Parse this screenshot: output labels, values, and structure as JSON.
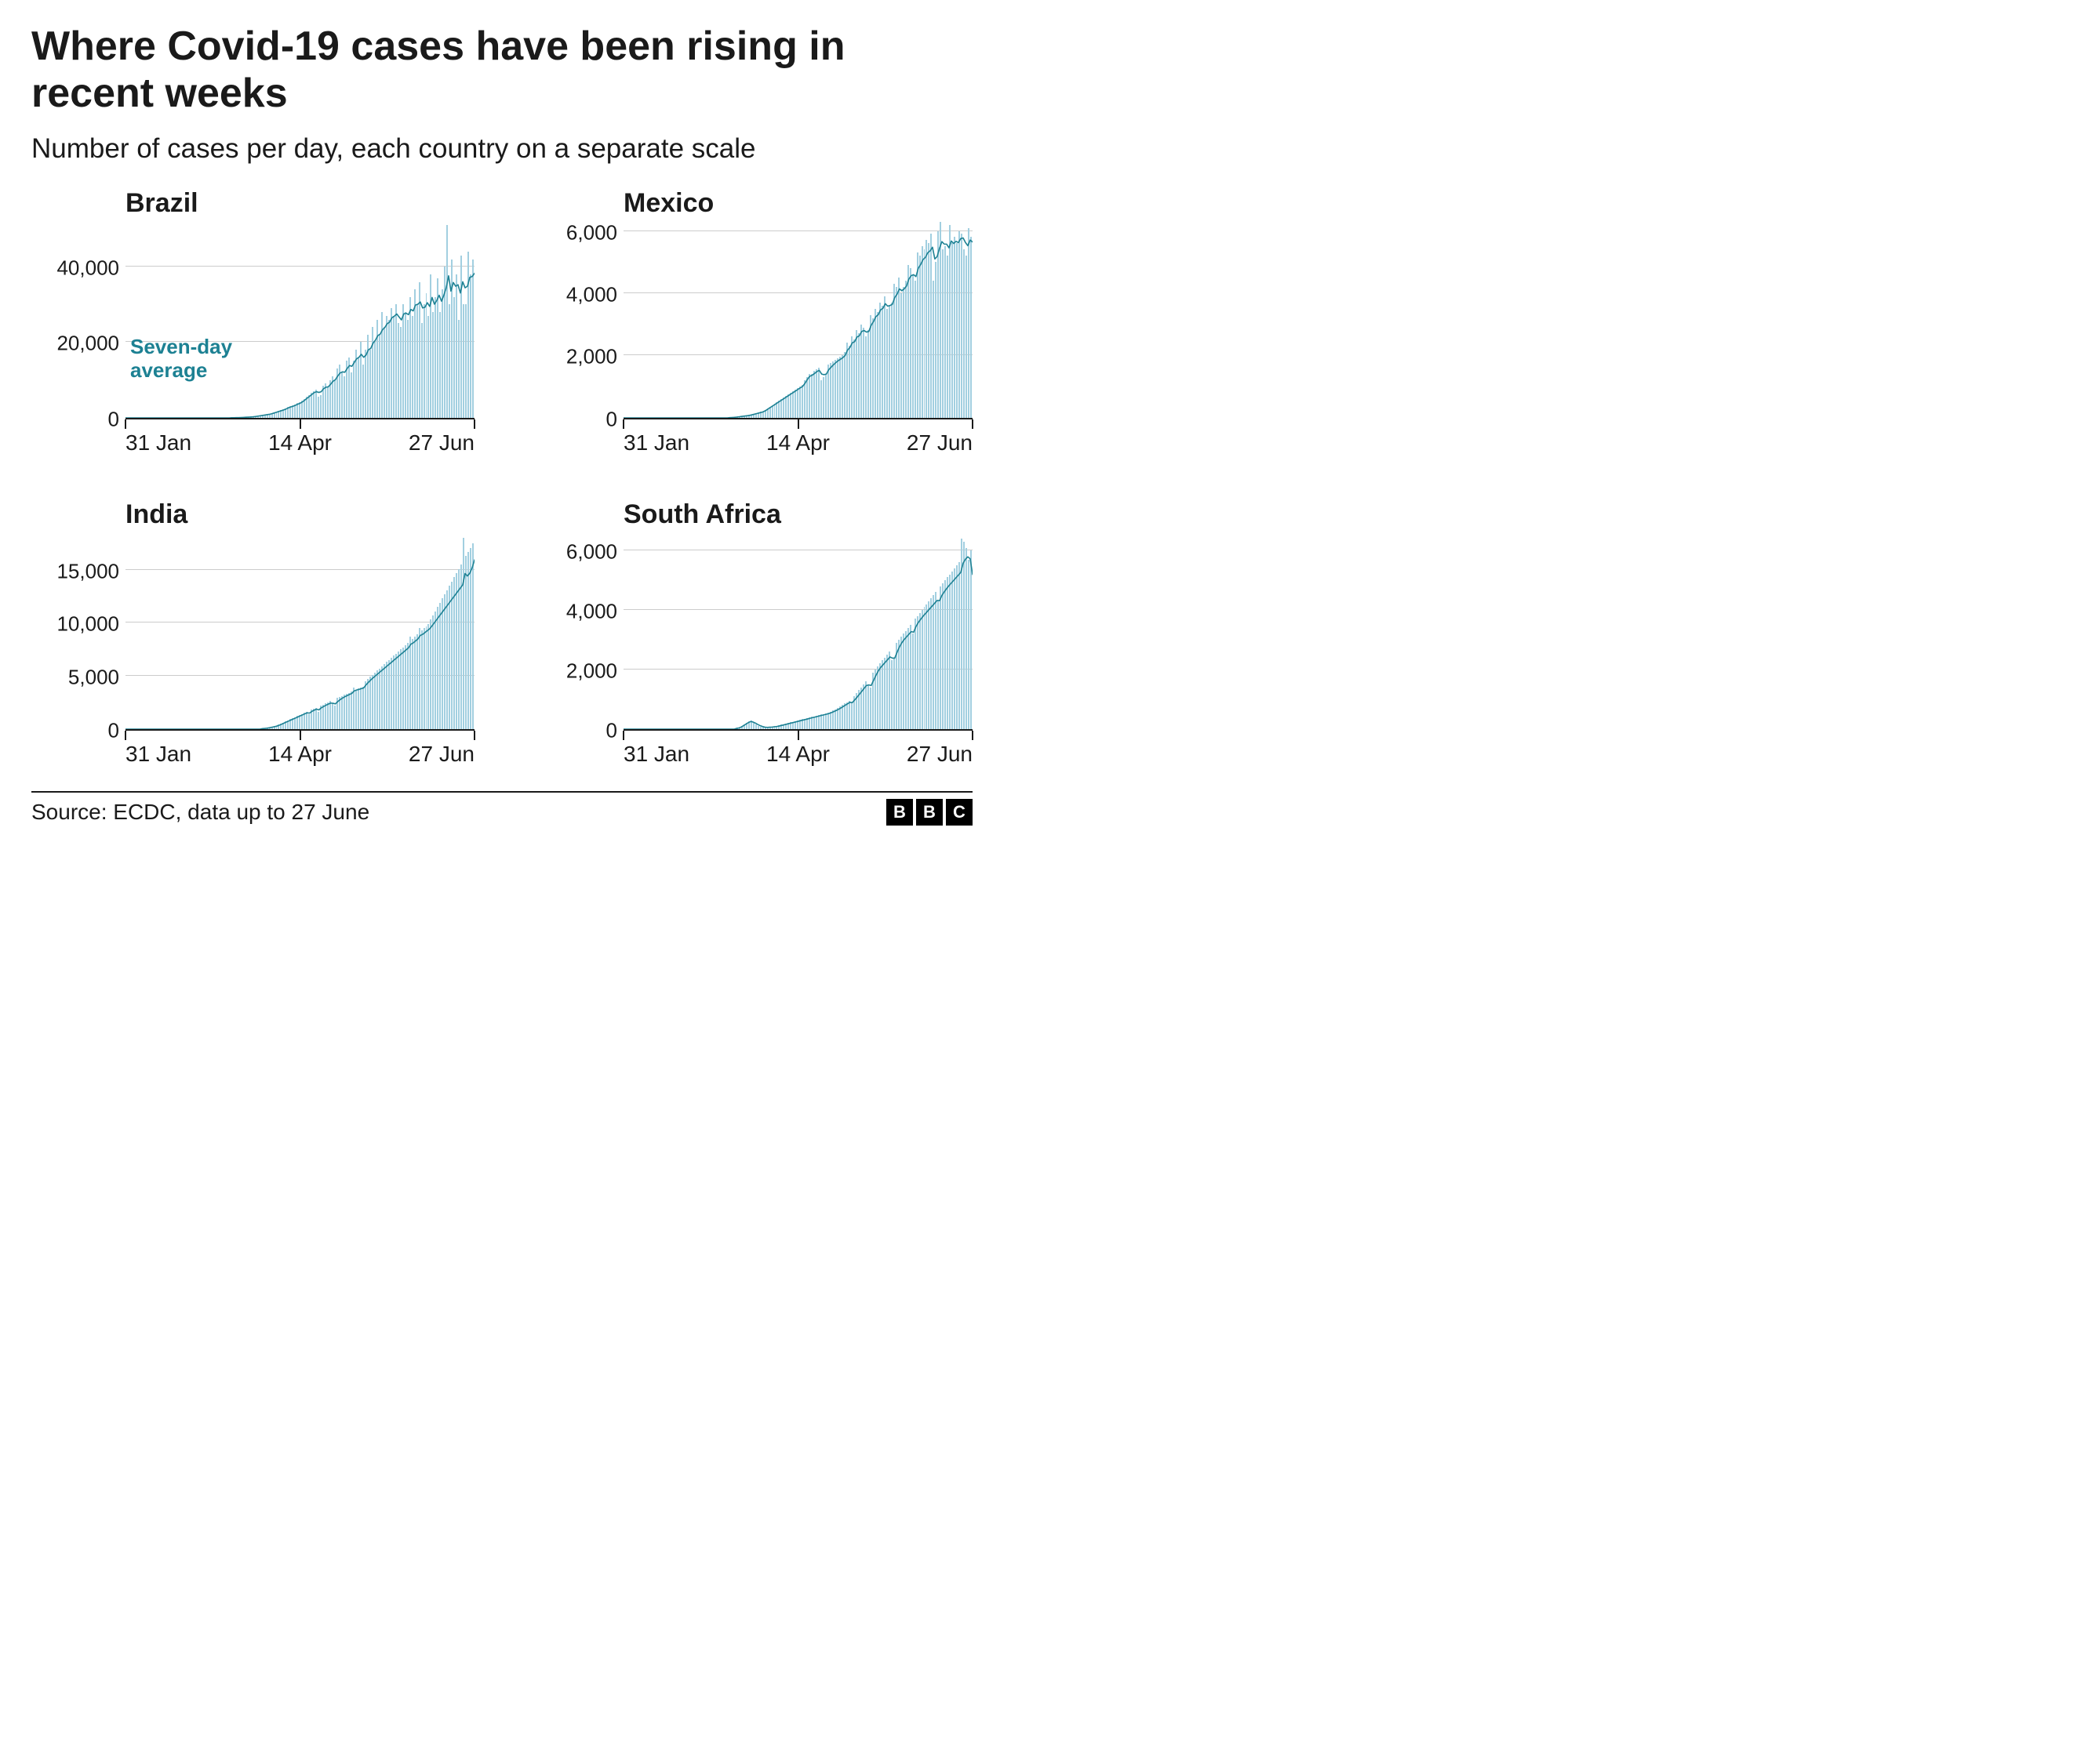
{
  "title": "Where Covid-19 cases have been rising in recent weeks",
  "subtitle": "Number of cases per day, each country on a separate scale",
  "source": "Source: ECDC, data up to 27 June",
  "logo_letters": [
    "B",
    "B",
    "C"
  ],
  "annotation_label": "Seven-day average",
  "style": {
    "line_color": "#1d8193",
    "bar_color": "#a2cfe0",
    "grid_color": "#cccccc",
    "bg_color": "#ffffff",
    "axis_color": "#1a1a1a",
    "line_width": 4,
    "title_fontsize": 52,
    "subtitle_fontsize": 35,
    "panel_title_fontsize": 34,
    "tick_fontsize": 26,
    "xlabel_fontsize": 28
  },
  "x_axis": {
    "labels": [
      "31 Jan",
      "14 Apr",
      "27 Jun"
    ],
    "positions_pct": [
      0,
      50,
      100
    ],
    "n_points": 149
  },
  "panels": [
    {
      "name": "Brazil",
      "ymax": 52000,
      "yticks": [
        0,
        20000,
        40000
      ],
      "ytick_labels": [
        "0",
        "20,000",
        "40,000"
      ],
      "annotation": true,
      "bars": [
        0,
        0,
        0,
        0,
        0,
        0,
        0,
        0,
        0,
        0,
        0,
        0,
        0,
        0,
        0,
        0,
        0,
        0,
        0,
        0,
        0,
        0,
        0,
        0,
        0,
        0,
        0,
        0,
        0,
        0,
        0,
        0,
        0,
        0,
        0,
        0,
        0,
        0,
        0,
        0,
        0,
        0,
        0,
        0,
        0,
        50,
        50,
        80,
        100,
        120,
        150,
        180,
        200,
        250,
        300,
        400,
        500,
        600,
        700,
        800,
        900,
        1000,
        1200,
        1400,
        1600,
        1800,
        2000,
        2200,
        2500,
        2800,
        3000,
        3200,
        3500,
        3800,
        4000,
        4500,
        5000,
        5500,
        6000,
        6500,
        7000,
        7500,
        5500,
        6000,
        8500,
        9000,
        8000,
        10000,
        11000,
        10000,
        13000,
        14000,
        12000,
        11000,
        15000,
        16000,
        12000,
        15000,
        18000,
        16000,
        20000,
        14000,
        18000,
        22000,
        18000,
        24000,
        20000,
        26000,
        22000,
        28000,
        24000,
        27000,
        26000,
        29000,
        27000,
        30000,
        25000,
        24000,
        30000,
        28000,
        26000,
        32000,
        27000,
        34000,
        30000,
        36000,
        25000,
        30000,
        33000,
        27000,
        38000,
        28000,
        32000,
        37000,
        28000,
        34000,
        40000,
        51000,
        30000,
        42000,
        32000,
        38000,
        26000,
        43000,
        30000,
        30000,
        44000,
        38000,
        42000
      ],
      "avg": [
        0,
        0,
        0,
        0,
        0,
        0,
        0,
        0,
        0,
        0,
        0,
        0,
        0,
        0,
        0,
        0,
        0,
        0,
        0,
        0,
        0,
        0,
        0,
        0,
        0,
        0,
        0,
        0,
        0,
        0,
        0,
        0,
        0,
        0,
        0,
        0,
        0,
        0,
        0,
        0,
        0,
        0,
        0,
        0,
        0,
        30,
        40,
        60,
        80,
        100,
        130,
        160,
        190,
        230,
        280,
        350,
        450,
        550,
        650,
        750,
        850,
        950,
        1100,
        1300,
        1500,
        1700,
        1900,
        2100,
        2350,
        2650,
        2900,
        3100,
        3350,
        3650,
        3900,
        4250,
        4750,
        5250,
        5750,
        6250,
        6750,
        7000,
        6800,
        7000,
        7800,
        8200,
        8300,
        9000,
        9800,
        10200,
        11200,
        12000,
        12300,
        12200,
        13200,
        14000,
        13800,
        14800,
        15800,
        16200,
        17000,
        16200,
        16800,
        18200,
        18600,
        20000,
        20800,
        22000,
        22400,
        23600,
        24200,
        25200,
        25600,
        26800,
        27200,
        27800,
        27000,
        26200,
        27800,
        28000,
        27600,
        29000,
        28600,
        30200,
        30400,
        31000,
        29400,
        29600,
        30800,
        29800,
        32200,
        30400,
        31400,
        32800,
        31200,
        32800,
        34800,
        38000,
        33900,
        36200,
        35200,
        35600,
        33400,
        36400,
        34800,
        35200,
        37600,
        37800,
        38670
      ]
    },
    {
      "name": "Mexico",
      "ymax": 6300,
      "yticks": [
        0,
        2000,
        4000,
        6000
      ],
      "ytick_labels": [
        "0",
        "2,000",
        "4,000",
        "6,000"
      ],
      "annotation": false,
      "bars": [
        0,
        0,
        0,
        0,
        0,
        0,
        0,
        0,
        0,
        0,
        0,
        0,
        0,
        0,
        0,
        0,
        0,
        0,
        0,
        0,
        0,
        0,
        0,
        0,
        0,
        0,
        0,
        0,
        0,
        0,
        0,
        0,
        0,
        0,
        0,
        0,
        0,
        0,
        0,
        0,
        0,
        0,
        0,
        0,
        0,
        10,
        15,
        20,
        30,
        40,
        50,
        60,
        70,
        80,
        100,
        120,
        140,
        160,
        180,
        200,
        250,
        300,
        350,
        400,
        450,
        500,
        550,
        600,
        650,
        700,
        750,
        800,
        850,
        900,
        950,
        1000,
        1050,
        1200,
        1300,
        1400,
        1400,
        1500,
        1550,
        1600,
        1200,
        1300,
        1400,
        1700,
        1750,
        1800,
        1850,
        1900,
        1950,
        2000,
        2100,
        2400,
        2300,
        2600,
        2500,
        2800,
        2700,
        3000,
        2900,
        2600,
        2800,
        3300,
        3200,
        3500,
        3400,
        3700,
        3600,
        3900,
        3500,
        3600,
        3700,
        4300,
        4200,
        4500,
        4000,
        4200,
        4400,
        4900,
        4800,
        4600,
        4400,
        5300,
        5200,
        5500,
        5400,
        5700,
        5600,
        5900,
        4400,
        5000,
        6000,
        6300,
        5400,
        5500,
        5200,
        6200,
        5600,
        5800,
        5600,
        6000,
        5900,
        5400,
        5200,
        6100,
        5800
      ],
      "avg": [
        0,
        0,
        0,
        0,
        0,
        0,
        0,
        0,
        0,
        0,
        0,
        0,
        0,
        0,
        0,
        0,
        0,
        0,
        0,
        0,
        0,
        0,
        0,
        0,
        0,
        0,
        0,
        0,
        0,
        0,
        0,
        0,
        0,
        0,
        0,
        0,
        0,
        0,
        0,
        0,
        0,
        0,
        0,
        0,
        0,
        8,
        12,
        17,
        25,
        35,
        45,
        55,
        65,
        75,
        90,
        110,
        130,
        150,
        170,
        190,
        225,
        275,
        325,
        375,
        425,
        475,
        525,
        575,
        625,
        675,
        725,
        775,
        825,
        875,
        925,
        975,
        1025,
        1125,
        1250,
        1350,
        1380,
        1440,
        1500,
        1540,
        1420,
        1400,
        1420,
        1560,
        1640,
        1720,
        1790,
        1850,
        1900,
        1950,
        2025,
        2200,
        2280,
        2430,
        2470,
        2620,
        2660,
        2800,
        2830,
        2780,
        2800,
        3000,
        3120,
        3280,
        3340,
        3500,
        3550,
        3700,
        3620,
        3640,
        3680,
        3900,
        4010,
        4180,
        4120,
        4180,
        4270,
        4500,
        4610,
        4640,
        4580,
        4850,
        4970,
        5130,
        5200,
        5350,
        5410,
        5530,
        5150,
        5230,
        5500,
        5710,
        5630,
        5630,
        5510,
        5730,
        5650,
        5720,
        5680,
        5810,
        5830,
        5680,
        5580,
        5760,
        5700
      ]
    },
    {
      "name": "India",
      "ymax": 18500,
      "yticks": [
        0,
        5000,
        10000,
        15000
      ],
      "ytick_labels": [
        "0",
        "5,000",
        "10,000",
        "15,000"
      ],
      "annotation": false,
      "bars": [
        0,
        0,
        0,
        0,
        0,
        0,
        0,
        0,
        0,
        0,
        0,
        0,
        0,
        0,
        0,
        0,
        0,
        0,
        0,
        0,
        0,
        0,
        0,
        0,
        0,
        0,
        0,
        0,
        0,
        0,
        0,
        0,
        0,
        0,
        0,
        0,
        0,
        0,
        0,
        0,
        0,
        0,
        0,
        0,
        0,
        0,
        0,
        0,
        0,
        0,
        0,
        0,
        0,
        0,
        0,
        0,
        0,
        0,
        50,
        80,
        100,
        150,
        200,
        250,
        300,
        400,
        500,
        600,
        700,
        800,
        900,
        1000,
        1100,
        1200,
        1300,
        1400,
        1500,
        1600,
        1400,
        1800,
        1900,
        2000,
        1600,
        2200,
        2300,
        2400,
        2500,
        2600,
        2400,
        2200,
        2900,
        3000,
        3100,
        3200,
        3300,
        3400,
        3500,
        3900,
        3700,
        3800,
        3900,
        4000,
        4500,
        4700,
        4900,
        5100,
        5300,
        5500,
        5700,
        5900,
        6100,
        6300,
        6500,
        6700,
        6900,
        7100,
        7300,
        7500,
        7700,
        7900,
        8100,
        8700,
        8500,
        8700,
        8900,
        9500,
        9300,
        9500,
        9700,
        9900,
        10300,
        10700,
        11100,
        11500,
        11900,
        12300,
        12700,
        13100,
        13500,
        13900,
        14300,
        14700,
        15100,
        15500,
        18000,
        16300,
        16700,
        17100,
        17500
      ],
      "avg": [
        0,
        0,
        0,
        0,
        0,
        0,
        0,
        0,
        0,
        0,
        0,
        0,
        0,
        0,
        0,
        0,
        0,
        0,
        0,
        0,
        0,
        0,
        0,
        0,
        0,
        0,
        0,
        0,
        0,
        0,
        0,
        0,
        0,
        0,
        0,
        0,
        0,
        0,
        0,
        0,
        0,
        0,
        0,
        0,
        0,
        0,
        0,
        0,
        0,
        0,
        0,
        0,
        0,
        0,
        0,
        0,
        0,
        0,
        40,
        65,
        90,
        125,
        175,
        225,
        275,
        350,
        450,
        550,
        650,
        750,
        850,
        950,
        1050,
        1150,
        1250,
        1350,
        1450,
        1550,
        1520,
        1680,
        1800,
        1900,
        1830,
        2020,
        2150,
        2270,
        2380,
        2480,
        2460,
        2400,
        2620,
        2800,
        2950,
        3080,
        3190,
        3300,
        3400,
        3640,
        3720,
        3780,
        3850,
        3920,
        4210,
        4450,
        4680,
        4880,
        5070,
        5260,
        5450,
        5640,
        5830,
        6020,
        6210,
        6400,
        6590,
        6780,
        6970,
        7160,
        7350,
        7540,
        7730,
        8080,
        8200,
        8390,
        8580,
        8910,
        9020,
        9190,
        9370,
        9550,
        9830,
        10130,
        10430,
        10730,
        11030,
        11330,
        11630,
        11930,
        12230,
        12530,
        12830,
        13130,
        13430,
        13730,
        14800,
        14570,
        14840,
        15350,
        16100
      ]
    },
    {
      "name": "South Africa",
      "ymax": 6600,
      "yticks": [
        0,
        2000,
        4000,
        6000
      ],
      "ytick_labels": [
        "0",
        "2,000",
        "4,000",
        "6,000"
      ],
      "annotation": false,
      "bars": [
        0,
        0,
        0,
        0,
        0,
        0,
        0,
        0,
        0,
        0,
        0,
        0,
        0,
        0,
        0,
        0,
        0,
        0,
        0,
        0,
        0,
        0,
        0,
        0,
        0,
        0,
        0,
        0,
        0,
        0,
        0,
        0,
        0,
        0,
        0,
        0,
        0,
        0,
        0,
        0,
        0,
        0,
        0,
        0,
        0,
        0,
        0,
        0,
        30,
        50,
        100,
        150,
        200,
        250,
        280,
        200,
        150,
        100,
        80,
        60,
        50,
        60,
        70,
        80,
        90,
        100,
        120,
        140,
        160,
        180,
        200,
        220,
        240,
        260,
        280,
        300,
        320,
        340,
        360,
        380,
        400,
        420,
        440,
        460,
        480,
        500,
        520,
        540,
        580,
        620,
        660,
        700,
        750,
        800,
        850,
        900,
        950,
        900,
        1100,
        1200,
        1300,
        1400,
        1500,
        1600,
        1500,
        1400,
        1900,
        2000,
        2100,
        2200,
        2300,
        2400,
        2500,
        2600,
        2300,
        2400,
        2900,
        3000,
        3100,
        3200,
        3300,
        3400,
        3500,
        3200,
        3700,
        3800,
        3900,
        4000,
        4100,
        4200,
        4300,
        4400,
        4500,
        4600,
        4300,
        4800,
        4900,
        5000,
        5100,
        5200,
        5300,
        5400,
        5500,
        5600,
        6400,
        6300,
        6100,
        5700,
        6000
      ],
      "avg": [
        0,
        0,
        0,
        0,
        0,
        0,
        0,
        0,
        0,
        0,
        0,
        0,
        0,
        0,
        0,
        0,
        0,
        0,
        0,
        0,
        0,
        0,
        0,
        0,
        0,
        0,
        0,
        0,
        0,
        0,
        0,
        0,
        0,
        0,
        0,
        0,
        0,
        0,
        0,
        0,
        0,
        0,
        0,
        0,
        0,
        0,
        0,
        0,
        25,
        40,
        75,
        125,
        175,
        225,
        260,
        238,
        200,
        155,
        115,
        85,
        65,
        60,
        65,
        70,
        80,
        90,
        105,
        125,
        145,
        165,
        185,
        205,
        225,
        245,
        265,
        285,
        305,
        325,
        345,
        365,
        385,
        405,
        425,
        445,
        465,
        485,
        505,
        525,
        555,
        590,
        625,
        665,
        710,
        760,
        810,
        860,
        910,
        900,
        990,
        1080,
        1180,
        1280,
        1380,
        1480,
        1500,
        1480,
        1650,
        1820,
        1970,
        2090,
        2180,
        2270,
        2360,
        2450,
        2410,
        2410,
        2610,
        2790,
        2930,
        3040,
        3130,
        3220,
        3310,
        3290,
        3480,
        3620,
        3730,
        3830,
        3920,
        4010,
        4100,
        4190,
        4280,
        4370,
        4360,
        4540,
        4660,
        4770,
        4870,
        4960,
        5050,
        5140,
        5230,
        5320,
        5630,
        5770,
        5850,
        5780,
        5250
      ]
    }
  ]
}
